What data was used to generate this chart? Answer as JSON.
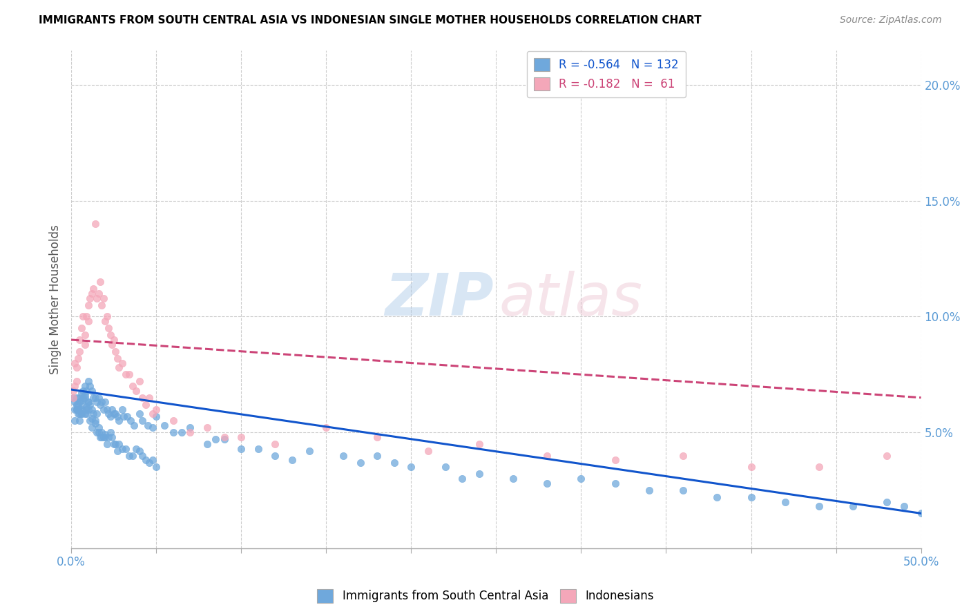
{
  "title": "IMMIGRANTS FROM SOUTH CENTRAL ASIA VS INDONESIAN SINGLE MOTHER HOUSEHOLDS CORRELATION CHART",
  "source_text": "Source: ZipAtlas.com",
  "ylabel": "Single Mother Households",
  "xmin": 0.0,
  "xmax": 0.5,
  "ymin": 0.0,
  "ymax": 0.215,
  "xticks": [
    0.0,
    0.05,
    0.1,
    0.15,
    0.2,
    0.25,
    0.3,
    0.35,
    0.4,
    0.45,
    0.5
  ],
  "ytick_right_labels": [
    "5.0%",
    "10.0%",
    "15.0%",
    "20.0%"
  ],
  "ytick_right_values": [
    0.05,
    0.1,
    0.15,
    0.2
  ],
  "blue_color": "#6fa8dc",
  "pink_color": "#f4a7b9",
  "blue_line_color": "#1155cc",
  "pink_line_color": "#cc4477",
  "legend_R1": "-0.564",
  "legend_N1": "132",
  "legend_R2": "-0.182",
  "legend_N2": " 61",
  "legend_label1": "Immigrants from South Central Asia",
  "legend_label2": "Indonesians",
  "background_color": "#ffffff",
  "grid_color": "#cccccc",
  "title_color": "#000000",
  "source_color": "#888888",
  "blue_scatter_x": [
    0.001,
    0.002,
    0.002,
    0.003,
    0.003,
    0.004,
    0.004,
    0.005,
    0.005,
    0.005,
    0.006,
    0.006,
    0.007,
    0.007,
    0.008,
    0.008,
    0.009,
    0.009,
    0.01,
    0.01,
    0.011,
    0.011,
    0.012,
    0.012,
    0.013,
    0.014,
    0.015,
    0.015,
    0.016,
    0.017,
    0.018,
    0.019,
    0.02,
    0.021,
    0.022,
    0.023,
    0.024,
    0.025,
    0.026,
    0.027,
    0.028,
    0.03,
    0.031,
    0.033,
    0.035,
    0.037,
    0.04,
    0.042,
    0.045,
    0.048,
    0.05,
    0.055,
    0.06,
    0.065,
    0.07,
    0.08,
    0.085,
    0.09,
    0.1,
    0.11,
    0.12,
    0.13,
    0.14,
    0.16,
    0.17,
    0.18,
    0.19,
    0.2,
    0.22,
    0.23,
    0.24,
    0.26,
    0.28,
    0.3,
    0.32,
    0.34,
    0.36,
    0.38,
    0.4,
    0.42,
    0.44,
    0.46,
    0.48,
    0.49,
    0.5,
    0.002,
    0.003,
    0.004,
    0.005,
    0.006,
    0.007,
    0.008,
    0.009,
    0.01,
    0.011,
    0.012,
    0.013,
    0.014,
    0.015,
    0.016,
    0.017,
    0.018,
    0.019,
    0.02,
    0.021,
    0.022,
    0.023,
    0.024,
    0.025,
    0.026,
    0.027,
    0.028,
    0.03,
    0.032,
    0.034,
    0.036,
    0.038,
    0.04,
    0.042,
    0.044,
    0.046,
    0.048,
    0.05,
    0.003,
    0.004,
    0.005,
    0.006,
    0.007,
    0.008,
    0.009,
    0.01,
    0.012,
    0.014,
    0.016,
    0.018,
    0.02
  ],
  "blue_scatter_y": [
    0.065,
    0.063,
    0.06,
    0.065,
    0.06,
    0.062,
    0.06,
    0.065,
    0.063,
    0.06,
    0.067,
    0.058,
    0.068,
    0.065,
    0.07,
    0.058,
    0.068,
    0.06,
    0.072,
    0.063,
    0.07,
    0.062,
    0.068,
    0.06,
    0.065,
    0.065,
    0.063,
    0.058,
    0.065,
    0.062,
    0.063,
    0.06,
    0.063,
    0.06,
    0.058,
    0.057,
    0.06,
    0.058,
    0.058,
    0.057,
    0.055,
    0.06,
    0.057,
    0.057,
    0.055,
    0.053,
    0.058,
    0.055,
    0.053,
    0.052,
    0.057,
    0.053,
    0.05,
    0.05,
    0.052,
    0.045,
    0.047,
    0.047,
    0.043,
    0.043,
    0.04,
    0.038,
    0.042,
    0.04,
    0.037,
    0.04,
    0.037,
    0.035,
    0.035,
    0.03,
    0.032,
    0.03,
    0.028,
    0.03,
    0.028,
    0.025,
    0.025,
    0.022,
    0.022,
    0.02,
    0.018,
    0.018,
    0.02,
    0.018,
    0.015,
    0.055,
    0.06,
    0.058,
    0.055,
    0.058,
    0.062,
    0.065,
    0.058,
    0.06,
    0.055,
    0.052,
    0.058,
    0.055,
    0.05,
    0.05,
    0.048,
    0.048,
    0.048,
    0.048,
    0.045,
    0.048,
    0.05,
    0.048,
    0.045,
    0.045,
    0.042,
    0.045,
    0.043,
    0.043,
    0.04,
    0.04,
    0.043,
    0.042,
    0.04,
    0.038,
    0.037,
    0.038,
    0.035,
    0.062,
    0.06,
    0.058,
    0.06,
    0.064,
    0.066,
    0.061,
    0.063,
    0.056,
    0.054,
    0.052,
    0.05,
    0.049
  ],
  "pink_scatter_x": [
    0.001,
    0.002,
    0.003,
    0.004,
    0.005,
    0.005,
    0.006,
    0.007,
    0.008,
    0.008,
    0.009,
    0.01,
    0.01,
    0.011,
    0.012,
    0.013,
    0.014,
    0.015,
    0.016,
    0.017,
    0.018,
    0.019,
    0.02,
    0.021,
    0.022,
    0.023,
    0.024,
    0.025,
    0.026,
    0.027,
    0.028,
    0.03,
    0.032,
    0.034,
    0.036,
    0.038,
    0.04,
    0.042,
    0.044,
    0.046,
    0.048,
    0.05,
    0.06,
    0.07,
    0.08,
    0.09,
    0.1,
    0.12,
    0.15,
    0.18,
    0.21,
    0.24,
    0.28,
    0.32,
    0.36,
    0.4,
    0.44,
    0.48,
    0.001,
    0.002,
    0.003
  ],
  "pink_scatter_y": [
    0.065,
    0.08,
    0.078,
    0.082,
    0.09,
    0.085,
    0.095,
    0.1,
    0.088,
    0.092,
    0.1,
    0.105,
    0.098,
    0.108,
    0.11,
    0.112,
    0.14,
    0.108,
    0.11,
    0.115,
    0.105,
    0.108,
    0.098,
    0.1,
    0.095,
    0.092,
    0.088,
    0.09,
    0.085,
    0.082,
    0.078,
    0.08,
    0.075,
    0.075,
    0.07,
    0.068,
    0.072,
    0.065,
    0.062,
    0.065,
    0.058,
    0.06,
    0.055,
    0.05,
    0.052,
    0.048,
    0.048,
    0.045,
    0.052,
    0.048,
    0.042,
    0.045,
    0.04,
    0.038,
    0.04,
    0.035,
    0.035,
    0.04,
    0.068,
    0.07,
    0.072
  ],
  "blue_trend_x": [
    0.0,
    0.5
  ],
  "blue_trend_y": [
    0.0685,
    0.015
  ],
  "pink_trend_x": [
    0.0,
    0.5
  ],
  "pink_trend_y": [
    0.09,
    0.065
  ]
}
